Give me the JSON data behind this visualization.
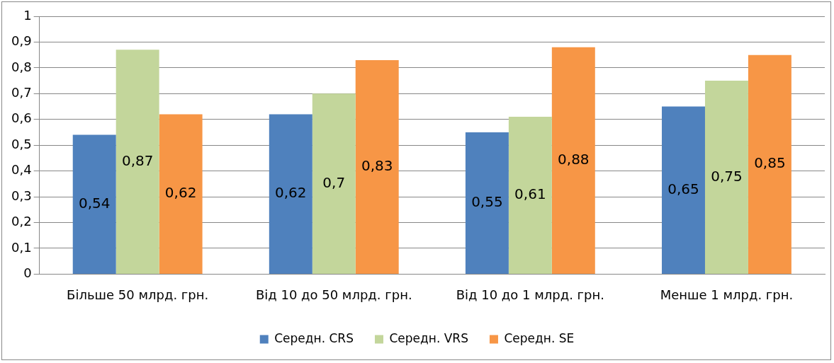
{
  "chart_data": {
    "type": "bar",
    "categories": [
      "Більше 50 млрд. грн.",
      "Від 10 до 50 млрд. грн.",
      "Від 10 до 1 млрд. грн.",
      "Менше 1 млрд. грн."
    ],
    "series": [
      {
        "name": "Середн. CRS",
        "color": "#4f81bd",
        "values": [
          0.54,
          0.62,
          0.55,
          0.65
        ],
        "value_labels": [
          "0,54",
          "0,62",
          "0,55",
          "0,65"
        ]
      },
      {
        "name": "Середн. VRS",
        "color": "#c3d69b",
        "values": [
          0.87,
          0.7,
          0.61,
          0.75
        ],
        "value_labels": [
          "0,87",
          "0,7",
          "0,61",
          "0,75"
        ]
      },
      {
        "name": "Середн. SE",
        "color": "#f79646",
        "values": [
          0.62,
          0.83,
          0.88,
          0.85
        ],
        "value_labels": [
          "0,62",
          "0,83",
          "0,88",
          "0,85"
        ]
      }
    ],
    "ylim": [
      0,
      1
    ],
    "yticks": [
      0,
      {
        "value": 0.1,
        "label": "0,1"
      },
      {
        "value": 0.2,
        "label": "0,2"
      },
      {
        "value": 0.3,
        "label": "0,3"
      },
      {
        "value": 0.4,
        "label": "0,4"
      },
      {
        "value": 0.5,
        "label": "0,5"
      },
      {
        "value": 0.6,
        "label": "0,6"
      },
      {
        "value": 0.7,
        "label": "0,7"
      },
      {
        "value": 0.8,
        "label": "0,8"
      },
      {
        "value": 0.9,
        "label": "0,9"
      },
      1
    ],
    "grid": "y",
    "legend": "bottom"
  }
}
